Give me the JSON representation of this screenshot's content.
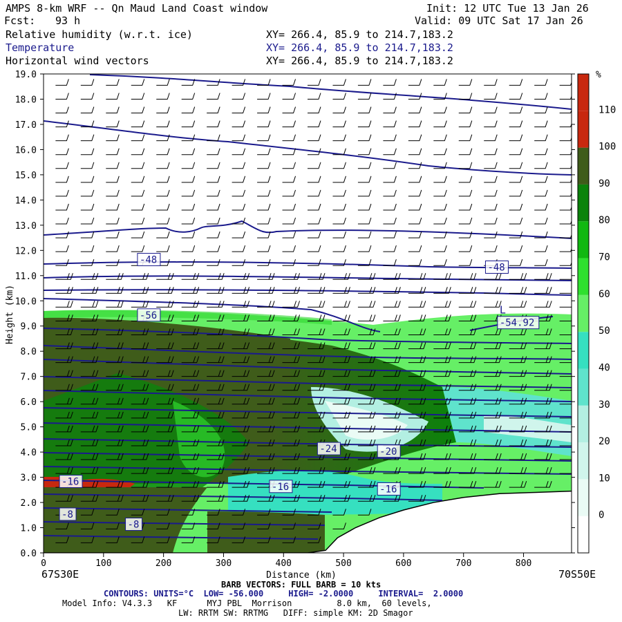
{
  "header": {
    "title": "AMPS 8-km WRF -- Qn Maud Land Coast window",
    "fcst_label": "Fcst:",
    "fcst_value": "93 h",
    "init": "Init: 12 UTC Tue 13 Jan 26",
    "valid": "Valid: 09 UTC Sat 17 Jan 26",
    "fields": [
      {
        "name": "Relative humidity (w.r.t. ice)",
        "xy": "XY= 266.4, 85.9 to 214.7,183.2"
      },
      {
        "name": "Temperature",
        "xy": "XY= 266.4, 85.9 to 214.7,183.2"
      },
      {
        "name": "Horizontal wind vectors",
        "xy": "XY= 266.4, 85.9 to 214.7,183.2"
      }
    ]
  },
  "footer": {
    "left_coord": "67S30E",
    "right_coord": "70S50E",
    "barb_note": "BARB VECTORS: FULL BARB = 10 kts",
    "contours": "CONTOURS: UNITS=°C  LOW= -56.000     HIGH= -2.0000     INTERVAL=  2.0000",
    "model_info": "Model Info: V4.3.3   KF      MYJ PBL  Morrison         8.0 km,  60 levels,",
    "model_info2": "LW: RRTM SW: RRTMG   DIFF: simple KM: 2D Smagor"
  },
  "chart_data": {
    "type": "heatmap",
    "title": "",
    "xlabel": "Distance (km)",
    "ylabel": "Height (km)",
    "xlim": [
      0,
      880
    ],
    "ylim": [
      0,
      19
    ],
    "x_ticks": [
      0,
      100,
      200,
      300,
      400,
      500,
      600,
      700,
      800
    ],
    "y_ticks": [
      "0.0",
      "1.0",
      "2.0",
      "3.0",
      "4.0",
      "5.0",
      "6.0",
      "7.0",
      "8.0",
      "9.0",
      "10.0",
      "11.0",
      "12.0",
      "13.0",
      "14.0",
      "15.0",
      "16.0",
      "17.0",
      "18.0",
      "19.0"
    ],
    "colorbar": {
      "unit": "%",
      "ticks": [
        0,
        10,
        20,
        30,
        40,
        50,
        60,
        70,
        80,
        90,
        100,
        110
      ],
      "colors": [
        "#ffffff",
        "#eafbf5",
        "#d0f5ec",
        "#b3efe2",
        "#5fe3cc",
        "#36e0c0",
        "#66ef66",
        "#2fe02f",
        "#11b811",
        "#0b830b",
        "#3f5c1a",
        "#c8280f"
      ]
    },
    "terrain": {
      "x": [
        0,
        440,
        470,
        490,
        520,
        560,
        600,
        650,
        700,
        760,
        820,
        880
      ],
      "height_km": [
        0,
        0,
        0.1,
        0.6,
        1.0,
        1.4,
        1.7,
        2.0,
        2.2,
        2.35,
        2.4,
        2.45
      ]
    },
    "temperature_contour_labels": [
      {
        "text": "-48",
        "x": 160,
        "z": 11.5
      },
      {
        "text": "-48",
        "x": 740,
        "z": 11.2
      },
      {
        "text": "-56",
        "x": 160,
        "z": 9.3
      },
      {
        "text": "-54.92",
        "x": 760,
        "z": 9.0
      },
      {
        "text": "L",
        "x": 760,
        "z": 9.5
      },
      {
        "text": "-24",
        "x": 460,
        "z": 4.0
      },
      {
        "text": "-20",
        "x": 560,
        "z": 3.9
      },
      {
        "text": "-16",
        "x": 380,
        "z": 2.5
      },
      {
        "text": "-16",
        "x": 560,
        "z": 2.4
      },
      {
        "text": "-16",
        "x": 30,
        "z": 2.7
      },
      {
        "text": "-8",
        "x": 30,
        "z": 1.4
      },
      {
        "text": "-8",
        "x": 140,
        "z": 1.0
      }
    ],
    "temperature_contours": {
      "low": -56,
      "high": -2,
      "interval": 2
    }
  }
}
